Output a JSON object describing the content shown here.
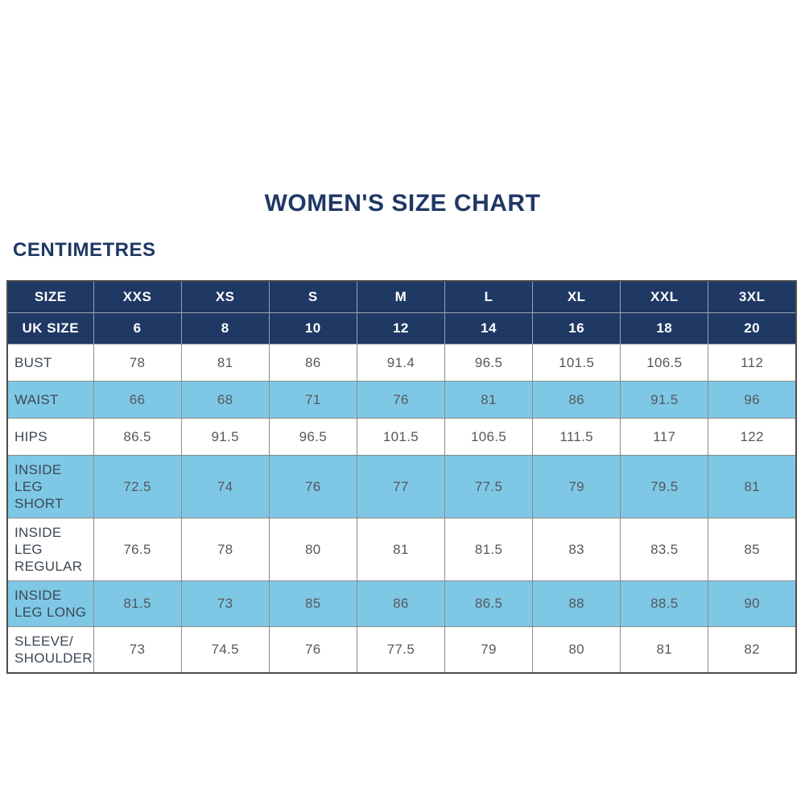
{
  "page": {
    "title": "WOMEN'S SIZE CHART",
    "unit_label": "CENTIMETRES"
  },
  "colors": {
    "navy_header": "#1F3864",
    "shaded_row_blue": "#7EC8E6",
    "title_text": "#1F3864",
    "cell_text": "#54585d",
    "grid_border": "#8c8c8c"
  },
  "chart_data": {
    "type": "table",
    "title": "WOMEN'S SIZE CHART",
    "unit": "CENTIMETRES",
    "header_rows": [
      {
        "label": "SIZE",
        "values": [
          "XXS",
          "XS",
          "S",
          "M",
          "L",
          "XL",
          "XXL",
          "3XL"
        ]
      },
      {
        "label": "UK SIZE",
        "values": [
          "6",
          "8",
          "10",
          "12",
          "14",
          "16",
          "18",
          "20"
        ]
      }
    ],
    "body_rows": [
      {
        "label": "BUST",
        "values": [
          78,
          81,
          86,
          91.4,
          96.5,
          101.5,
          106.5,
          112
        ]
      },
      {
        "label": "WAIST",
        "values": [
          66,
          68,
          71,
          76,
          81,
          86,
          91.5,
          96
        ]
      },
      {
        "label": "HIPS",
        "values": [
          86.5,
          91.5,
          96.5,
          101.5,
          106.5,
          111.5,
          117,
          122
        ]
      },
      {
        "label": "INSIDE LEG SHORT",
        "values": [
          72.5,
          74,
          76,
          77,
          77.5,
          79,
          79.5,
          81
        ]
      },
      {
        "label": "INSIDE LEG REGULAR",
        "values": [
          76.5,
          78,
          80,
          81,
          81.5,
          83,
          83.5,
          85
        ]
      },
      {
        "label": "INSIDE LEG LONG",
        "values": [
          81.5,
          73,
          85,
          86,
          86.5,
          88,
          88.5,
          90
        ]
      },
      {
        "label": "SLEEVE/ SHOULDER",
        "values": [
          73,
          74.5,
          76,
          77.5,
          79,
          80,
          81,
          82
        ]
      }
    ]
  }
}
